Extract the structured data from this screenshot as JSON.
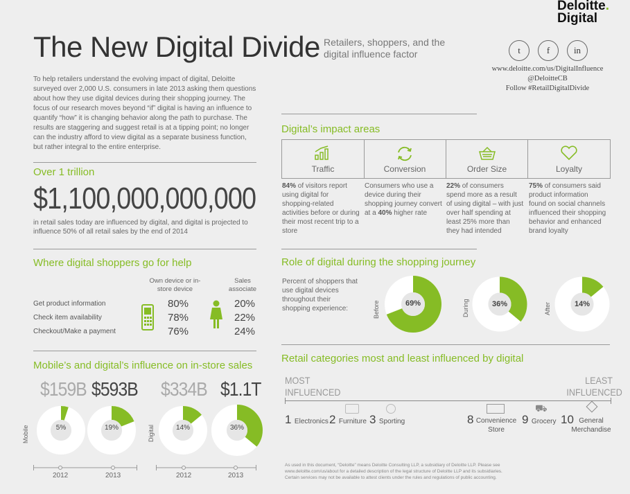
{
  "brand": {
    "line1": "Deloitte",
    "dot": ".",
    "line2": "Digital"
  },
  "title": "The New Digital Divide",
  "subtitle": "Retailers, shoppers, and the digital influence factor",
  "social": {
    "twitter": "twitter-icon",
    "facebook": "facebook-icon",
    "linkedin": "linkedin-icon",
    "twitter_glyph": "t",
    "facebook_glyph": "f",
    "linkedin_glyph": "in"
  },
  "contact": {
    "url": "www.deloitte.com/us/DigitalInfluence",
    "handle": "@DeloitteCB",
    "hashtag": "Follow #RetailDigitalDivide"
  },
  "intro": "To help retailers understand the evolving impact of digital, Deloitte surveyed over 2,000 U.S. consumers in late 2013 asking them questions about how they use digital devices during their shopping journey. The focus of our research moves beyond “if” digital is having an influence to quantify “how” it is changing behavior along the path to purchase. The results are staggering and suggest retail is at a tipping point; no longer can the industry afford to view digital as a separate business function, but rather integral to the entire enterprise.",
  "trillion": {
    "label": "Over 1 trillion",
    "value": "$1,100,000,000,000",
    "desc": "in retail sales today are influenced by digital, and digital is projected to influence 50% of all retail sales by the end of 2014"
  },
  "help": {
    "title": "Where digital shoppers go for help",
    "col1": "Own device or in-store device",
    "col2": "Sales associate",
    "rows": [
      {
        "label": "Get product information",
        "device": "80%",
        "associate": "20%"
      },
      {
        "label": "Check item availability",
        "device": "78%",
        "associate": "22%"
      },
      {
        "label": "Checkout/Make a payment",
        "device": "76%",
        "associate": "24%"
      }
    ]
  },
  "instore": {
    "title": "Mobile’s and digital’s influence on in-store sales",
    "groups": [
      {
        "label": "Mobile",
        "items": [
          {
            "amount": "$159B",
            "pct": "5%",
            "value": 5,
            "year": "2012",
            "muted": true
          },
          {
            "amount": "$593B",
            "pct": "19%",
            "value": 19,
            "year": "2013",
            "muted": false
          }
        ]
      },
      {
        "label": "Digital",
        "items": [
          {
            "amount": "$334B",
            "pct": "14%",
            "value": 14,
            "year": "2012",
            "muted": true
          },
          {
            "amount": "$1.1T",
            "pct": "36%",
            "value": 36,
            "year": "2013",
            "muted": false
          }
        ]
      }
    ]
  },
  "impact": {
    "title": "Digital’s impact areas",
    "areas": [
      {
        "label": "Traffic",
        "icon": "bar-chart-icon",
        "strong": "84%",
        "text": " of visitors report using digital for shopping-related activities before or during their most recent trip to a store"
      },
      {
        "label": "Conversion",
        "icon": "refresh-icon",
        "pre": "Consumers who use a device during their shopping journey convert at a ",
        "strong": "40%",
        "text": " higher rate"
      },
      {
        "label": "Order Size",
        "icon": "basket-icon",
        "strong": "22%",
        "text": " of consumers spend more as a result of using digital – with just over half spending at least 25% more than they had intended"
      },
      {
        "label": "Loyalty",
        "icon": "heart-icon",
        "strong": "75%",
        "text": " of consumers said product information found on social channels influenced their shopping behavior and enhanced brand loyalty"
      }
    ]
  },
  "journey": {
    "title": "Role of digital during the shopping journey",
    "desc": "Percent of shoppers that use digital devices throughout their shopping experience:",
    "stages": [
      {
        "label": "Before",
        "pct": "69%",
        "value": 69
      },
      {
        "label": "During",
        "pct": "36%",
        "value": 36
      },
      {
        "label": "After",
        "pct": "14%",
        "value": 14
      }
    ]
  },
  "categories": {
    "title": "Retail categories most and least influenced by digital",
    "most": "MOST INFLUENCED",
    "least": "LEAST INFLUENCED",
    "top": [
      {
        "num": "1",
        "label": "Electronics"
      },
      {
        "num": "2",
        "label": "Furniture"
      },
      {
        "num": "3",
        "label": "Sporting"
      }
    ],
    "bottom": [
      {
        "num": "8",
        "label": "Convenience Store"
      },
      {
        "num": "9",
        "label": "Grocery"
      },
      {
        "num": "10",
        "label": "General Merchandise"
      }
    ]
  },
  "footnote": "As used in this document, “Deloitte” means Deloitte Consulting LLP, a subsidiary of Deloitte LLP. Please see www.deloitte.com/us/about for a detailed description of the legal structure of Deloitte LLP and its subsidiaries. Certain services may not be available to attest clients under the rules and regulations of public accounting.",
  "colors": {
    "accent": "#86bc25",
    "ring": "#ffffff",
    "text": "#444444"
  }
}
